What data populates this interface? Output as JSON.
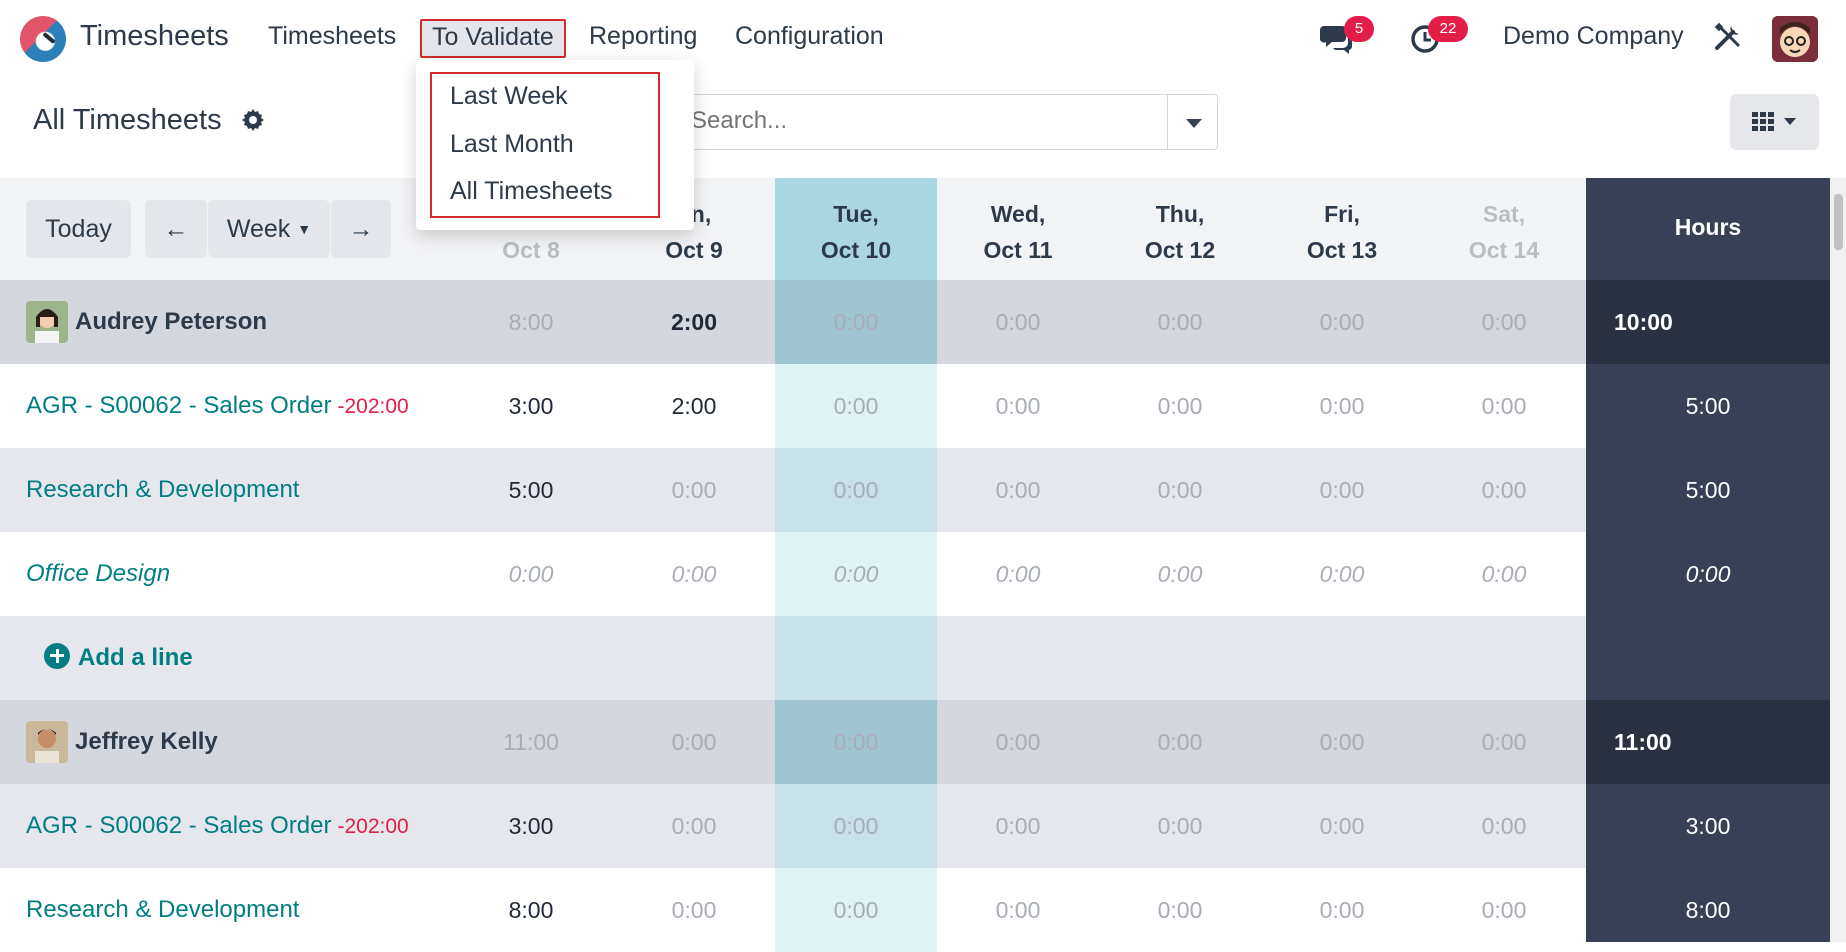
{
  "app": {
    "name": "Timesheets"
  },
  "nav": {
    "items": [
      "Timesheets",
      "To Validate",
      "Reporting",
      "Configuration"
    ],
    "messages_badge": "5",
    "activities_badge": "22",
    "company": "Demo Company"
  },
  "dropdown": {
    "items": [
      "Last Week",
      "Last Month",
      "All Timesheets"
    ]
  },
  "control": {
    "title": "All Timesheets",
    "search_placeholder": "Search..."
  },
  "toolbar": {
    "today": "Today",
    "prev": "←",
    "period": "Week",
    "next": "→"
  },
  "days": [
    {
      "top": "",
      "bottom": "Oct 8",
      "dim": true
    },
    {
      "top": "on,",
      "bottom": "Oct 9",
      "dim": false
    },
    {
      "top": "Tue,",
      "bottom": "Oct 10",
      "dim": false
    },
    {
      "top": "Wed,",
      "bottom": "Oct 11",
      "dim": false
    },
    {
      "top": "Thu,",
      "bottom": "Oct 12",
      "dim": false
    },
    {
      "top": "Fri,",
      "bottom": "Oct 13",
      "dim": false
    },
    {
      "top": "Sat,",
      "bottom": "Oct 14",
      "dim": true
    }
  ],
  "hours_header": "Hours",
  "rows": [
    {
      "type": "employee",
      "label": "Audrey Peterson",
      "cells": [
        "8:00",
        "2:00",
        "0:00",
        "0:00",
        "0:00",
        "0:00",
        "0:00"
      ],
      "total": "10:00"
    },
    {
      "type": "project",
      "label": "AGR - S00062 - Sales Order",
      "extra": "-202:00",
      "cells": [
        "3:00",
        "2:00",
        "0:00",
        "0:00",
        "0:00",
        "0:00",
        "0:00"
      ],
      "total": "5:00"
    },
    {
      "type": "project",
      "label": "Research & Development",
      "cells": [
        "5:00",
        "0:00",
        "0:00",
        "0:00",
        "0:00",
        "0:00",
        "0:00"
      ],
      "total": "5:00"
    },
    {
      "type": "project-italic",
      "label": "Office Design",
      "cells": [
        "0:00",
        "0:00",
        "0:00",
        "0:00",
        "0:00",
        "0:00",
        "0:00"
      ],
      "total": "0:00"
    },
    {
      "type": "addline",
      "label": "Add a line"
    },
    {
      "type": "employee",
      "label": "Jeffrey Kelly",
      "cells": [
        "11:00",
        "0:00",
        "0:00",
        "0:00",
        "0:00",
        "0:00",
        "0:00"
      ],
      "total": "11:00"
    },
    {
      "type": "project",
      "label": "AGR - S00062 - Sales Order",
      "extra": "-202:00",
      "cells": [
        "3:00",
        "0:00",
        "0:00",
        "0:00",
        "0:00",
        "0:00",
        "0:00"
      ],
      "total": "3:00"
    },
    {
      "type": "project",
      "label": "Research & Development",
      "cells": [
        "8:00",
        "0:00",
        "0:00",
        "0:00",
        "0:00",
        "0:00",
        "0:00"
      ],
      "total": "8:00"
    }
  ],
  "colors": {
    "accent": "#017e84",
    "today_col": "#dff3f5",
    "today_col_emp": "#9fc7d2",
    "hours_bg": "#374054",
    "badge": "#e11d48"
  }
}
